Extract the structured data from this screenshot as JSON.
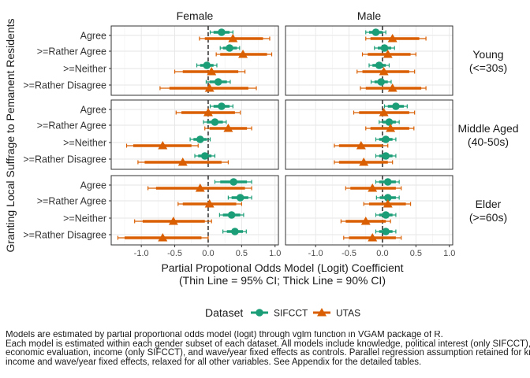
{
  "chart_data": {
    "type": "scatter",
    "xlabel_line1": "Partial Propotional Odds Model (Logit) Coefficient",
    "xlabel_line2": "(Thin Line = 95% CI; Thick Line = 90% CI)",
    "ylabel": "Granting Local Suffrage to Pemanent Residents",
    "xlim": [
      -1.45,
      1.05
    ],
    "xticks": [
      -1.0,
      -0.5,
      0.0,
      0.5,
      1.0
    ],
    "xtick_labels": [
      "-1.0",
      "-0.5",
      "0.0",
      "0.5",
      "1.0"
    ],
    "col_facets": [
      "Female",
      "Male"
    ],
    "row_facets": [
      {
        "line1": "Young",
        "line2": "(<=30s)"
      },
      {
        "line1": "Middle Aged",
        "line2": "(40-50s)"
      },
      {
        "line1": "Elder",
        "line2": "(>=60s)"
      }
    ],
    "categories": [
      "Agree",
      ">=Rather Agree",
      ">=Neither",
      ">=Rather Disagree"
    ],
    "legend": {
      "title": "Dataset",
      "position": "bottom"
    },
    "series": [
      {
        "name": "SIFCCT",
        "color": "#1b9e77",
        "shape": "circle"
      },
      {
        "name": "UTAS",
        "color": "#d95f02",
        "shape": "triangle"
      }
    ],
    "points": [
      {
        "row": 0,
        "col": 0,
        "cat": 0,
        "series": 0,
        "est": 0.2,
        "lo90": 0.08,
        "hi90": 0.32,
        "lo95": 0.03,
        "hi95": 0.37
      },
      {
        "row": 0,
        "col": 0,
        "cat": 0,
        "series": 1,
        "est": 0.37,
        "lo90": -0.05,
        "hi90": 0.82,
        "lo95": -0.13,
        "hi95": 0.92
      },
      {
        "row": 0,
        "col": 0,
        "cat": 1,
        "series": 0,
        "est": 0.32,
        "lo90": 0.22,
        "hi90": 0.43,
        "lo95": 0.18,
        "hi95": 0.47
      },
      {
        "row": 0,
        "col": 0,
        "cat": 1,
        "series": 1,
        "est": 0.52,
        "lo90": 0.18,
        "hi90": 0.88,
        "lo95": 0.12,
        "hi95": 0.95
      },
      {
        "row": 0,
        "col": 0,
        "cat": 2,
        "series": 0,
        "est": -0.02,
        "lo90": -0.12,
        "hi90": 0.08,
        "lo95": -0.17,
        "hi95": 0.13
      },
      {
        "row": 0,
        "col": 0,
        "cat": 2,
        "series": 1,
        "est": 0.05,
        "lo90": -0.38,
        "hi90": 0.45,
        "lo95": -0.5,
        "hi95": 0.55
      },
      {
        "row": 0,
        "col": 0,
        "cat": 3,
        "series": 0,
        "est": 0.15,
        "lo90": 0.02,
        "hi90": 0.28,
        "lo95": -0.03,
        "hi95": 0.33
      },
      {
        "row": 0,
        "col": 0,
        "cat": 3,
        "series": 1,
        "est": 0.02,
        "lo90": -0.58,
        "hi90": 0.6,
        "lo95": -0.72,
        "hi95": 0.72
      },
      {
        "row": 0,
        "col": 1,
        "cat": 0,
        "series": 0,
        "est": -0.1,
        "lo90": -0.2,
        "hi90": 0.0,
        "lo95": -0.25,
        "hi95": 0.05
      },
      {
        "row": 0,
        "col": 1,
        "cat": 0,
        "series": 1,
        "est": 0.15,
        "lo90": -0.18,
        "hi90": 0.55,
        "lo95": -0.25,
        "hi95": 0.65
      },
      {
        "row": 0,
        "col": 1,
        "cat": 1,
        "series": 0,
        "est": 0.03,
        "lo90": -0.07,
        "hi90": 0.13,
        "lo95": -0.12,
        "hi95": 0.18
      },
      {
        "row": 0,
        "col": 1,
        "cat": 1,
        "series": 1,
        "est": 0.08,
        "lo90": -0.22,
        "hi90": 0.42,
        "lo95": -0.3,
        "hi95": 0.5
      },
      {
        "row": 0,
        "col": 1,
        "cat": 2,
        "series": 0,
        "est": -0.05,
        "lo90": -0.15,
        "hi90": 0.05,
        "lo95": -0.2,
        "hi95": 0.1
      },
      {
        "row": 0,
        "col": 1,
        "cat": 2,
        "series": 1,
        "est": 0.02,
        "lo90": -0.3,
        "hi90": 0.4,
        "lo95": -0.38,
        "hi95": 0.48
      },
      {
        "row": 0,
        "col": 1,
        "cat": 3,
        "series": 0,
        "est": -0.02,
        "lo90": -0.12,
        "hi90": 0.08,
        "lo95": -0.17,
        "hi95": 0.13
      },
      {
        "row": 0,
        "col": 1,
        "cat": 3,
        "series": 1,
        "est": 0.15,
        "lo90": -0.25,
        "hi90": 0.58,
        "lo95": -0.33,
        "hi95": 0.65
      },
      {
        "row": 1,
        "col": 0,
        "cat": 0,
        "series": 0,
        "est": 0.2,
        "lo90": 0.08,
        "hi90": 0.32,
        "lo95": 0.03,
        "hi95": 0.37
      },
      {
        "row": 1,
        "col": 0,
        "cat": 0,
        "series": 1,
        "est": 0.0,
        "lo90": -0.4,
        "hi90": 0.4,
        "lo95": -0.48,
        "hi95": 0.48
      },
      {
        "row": 1,
        "col": 0,
        "cat": 1,
        "series": 0,
        "est": 0.1,
        "lo90": -0.02,
        "hi90": 0.22,
        "lo95": -0.07,
        "hi95": 0.27
      },
      {
        "row": 1,
        "col": 0,
        "cat": 1,
        "series": 1,
        "est": 0.3,
        "lo90": 0.02,
        "hi90": 0.58,
        "lo95": -0.05,
        "hi95": 0.65
      },
      {
        "row": 1,
        "col": 0,
        "cat": 2,
        "series": 0,
        "est": -0.12,
        "lo90": -0.22,
        "hi90": -0.02,
        "lo95": -0.27,
        "hi95": 0.03
      },
      {
        "row": 1,
        "col": 0,
        "cat": 2,
        "series": 1,
        "est": -0.68,
        "lo90": -1.12,
        "hi90": -0.25,
        "lo95": -1.22,
        "hi95": -0.15
      },
      {
        "row": 1,
        "col": 0,
        "cat": 3,
        "series": 0,
        "est": -0.05,
        "lo90": -0.15,
        "hi90": 0.05,
        "lo95": -0.2,
        "hi95": 0.1
      },
      {
        "row": 1,
        "col": 0,
        "cat": 3,
        "series": 1,
        "est": -0.38,
        "lo90": -0.95,
        "hi90": 0.2,
        "lo95": -1.05,
        "hi95": 0.3
      },
      {
        "row": 1,
        "col": 1,
        "cat": 0,
        "series": 0,
        "est": 0.2,
        "lo90": 0.08,
        "hi90": 0.32,
        "lo95": 0.03,
        "hi95": 0.37
      },
      {
        "row": 1,
        "col": 1,
        "cat": 0,
        "series": 1,
        "est": 0.02,
        "lo90": -0.35,
        "hi90": 0.4,
        "lo95": -0.43,
        "hi95": 0.48
      },
      {
        "row": 1,
        "col": 1,
        "cat": 1,
        "series": 0,
        "est": 0.1,
        "lo90": 0.0,
        "hi90": 0.2,
        "lo95": -0.05,
        "hi95": 0.25
      },
      {
        "row": 1,
        "col": 1,
        "cat": 1,
        "series": 1,
        "est": 0.12,
        "lo90": -0.18,
        "hi90": 0.4,
        "lo95": -0.25,
        "hi95": 0.47
      },
      {
        "row": 1,
        "col": 1,
        "cat": 2,
        "series": 0,
        "est": 0.05,
        "lo90": -0.05,
        "hi90": 0.15,
        "lo95": -0.1,
        "hi95": 0.2
      },
      {
        "row": 1,
        "col": 1,
        "cat": 2,
        "series": 1,
        "est": -0.32,
        "lo90": -0.65,
        "hi90": 0.0,
        "lo95": -0.72,
        "hi95": 0.08
      },
      {
        "row": 1,
        "col": 1,
        "cat": 3,
        "series": 0,
        "est": 0.05,
        "lo90": -0.05,
        "hi90": 0.15,
        "lo95": -0.1,
        "hi95": 0.2
      },
      {
        "row": 1,
        "col": 1,
        "cat": 3,
        "series": 1,
        "est": -0.28,
        "lo90": -0.65,
        "hi90": 0.08,
        "lo95": -0.72,
        "hi95": 0.15
      },
      {
        "row": 2,
        "col": 0,
        "cat": 0,
        "series": 0,
        "est": 0.38,
        "lo90": 0.18,
        "hi90": 0.58,
        "lo95": 0.1,
        "hi95": 0.65
      },
      {
        "row": 2,
        "col": 0,
        "cat": 0,
        "series": 1,
        "est": -0.12,
        "lo90": -0.78,
        "hi90": 0.55,
        "lo95": -0.9,
        "hi95": 0.65
      },
      {
        "row": 2,
        "col": 0,
        "cat": 1,
        "series": 0,
        "est": 0.48,
        "lo90": 0.35,
        "hi90": 0.6,
        "lo95": 0.3,
        "hi95": 0.65
      },
      {
        "row": 2,
        "col": 0,
        "cat": 1,
        "series": 1,
        "est": 0.02,
        "lo90": -0.38,
        "hi90": 0.42,
        "lo95": -0.45,
        "hi95": 0.5
      },
      {
        "row": 2,
        "col": 0,
        "cat": 2,
        "series": 0,
        "est": 0.35,
        "lo90": 0.22,
        "hi90": 0.48,
        "lo95": 0.17,
        "hi95": 0.53
      },
      {
        "row": 2,
        "col": 0,
        "cat": 2,
        "series": 1,
        "est": -0.52,
        "lo90": -0.98,
        "hi90": -0.05,
        "lo95": -1.1,
        "hi95": 0.05
      },
      {
        "row": 2,
        "col": 0,
        "cat": 3,
        "series": 0,
        "est": 0.4,
        "lo90": 0.28,
        "hi90": 0.52,
        "lo95": 0.22,
        "hi95": 0.57
      },
      {
        "row": 2,
        "col": 0,
        "cat": 3,
        "series": 1,
        "est": -0.68,
        "lo90": -1.25,
        "hi90": -0.1,
        "lo95": -1.35,
        "hi95": 0.0
      },
      {
        "row": 2,
        "col": 1,
        "cat": 0,
        "series": 0,
        "est": 0.08,
        "lo90": -0.05,
        "hi90": 0.2,
        "lo95": -0.1,
        "hi95": 0.25
      },
      {
        "row": 2,
        "col": 1,
        "cat": 0,
        "series": 1,
        "est": -0.15,
        "lo90": -0.48,
        "hi90": 0.2,
        "lo95": -0.55,
        "hi95": 0.28
      },
      {
        "row": 2,
        "col": 1,
        "cat": 1,
        "series": 0,
        "est": 0.08,
        "lo90": -0.04,
        "hi90": 0.2,
        "lo95": -0.09,
        "hi95": 0.25
      },
      {
        "row": 2,
        "col": 1,
        "cat": 1,
        "series": 1,
        "est": 0.08,
        "lo90": -0.2,
        "hi90": 0.35,
        "lo95": -0.28,
        "hi95": 0.42
      },
      {
        "row": 2,
        "col": 1,
        "cat": 2,
        "series": 0,
        "est": 0.05,
        "lo90": -0.05,
        "hi90": 0.15,
        "lo95": -0.1,
        "hi95": 0.2
      },
      {
        "row": 2,
        "col": 1,
        "cat": 2,
        "series": 1,
        "est": -0.25,
        "lo90": -0.55,
        "hi90": 0.05,
        "lo95": -0.62,
        "hi95": 0.12
      },
      {
        "row": 2,
        "col": 1,
        "cat": 3,
        "series": 0,
        "est": 0.05,
        "lo90": -0.05,
        "hi90": 0.15,
        "lo95": -0.1,
        "hi95": 0.2
      },
      {
        "row": 2,
        "col": 1,
        "cat": 3,
        "series": 1,
        "est": -0.15,
        "lo90": -0.5,
        "hi90": 0.2,
        "lo95": -0.58,
        "hi95": 0.28
      }
    ]
  },
  "note": {
    "line1": "Models are estimated by partial proportional odds model (logit) through vglm function in VGAM package of R.",
    "line2": "Each model is estimated within each gender subset of each dataset. All models include knowledge, political interest (only SIFCCT), ideology, LDP - DPJ feeling thermometer,",
    "line3": "economic evaluation, income (only SIFCCT), and wave/year fixed effects as controls. Parallel regression assumption retained for knowledge, ideology, political interest,",
    "line4": "income and wave/year fixed effects, relaxed for all other variables. See Appendix for the detailed tables."
  }
}
